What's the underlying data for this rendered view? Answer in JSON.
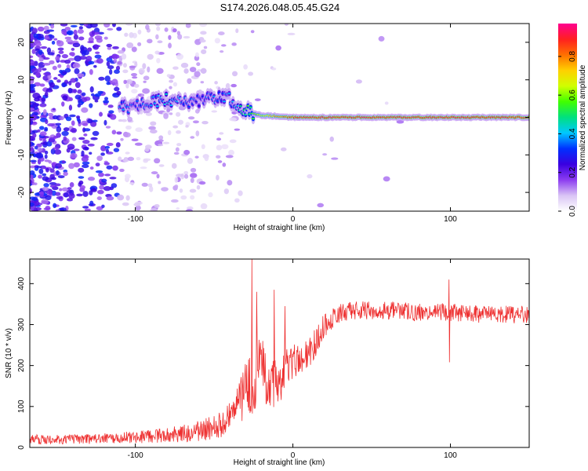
{
  "figure_title": "S174.2026.048.05.45.G24",
  "colorbar": {
    "label": "Normalized spectral amplitude",
    "ticks": [
      "0.0",
      "0.2",
      "0.4",
      "0.6",
      "0.8"
    ],
    "tick_values": [
      0.0,
      0.2,
      0.4,
      0.6,
      0.8
    ],
    "range": [
      0,
      0.97
    ],
    "colormap": [
      "#ffffff",
      "#d9c4f5",
      "#8c3cf0",
      "#3a00e0",
      "#0030ff",
      "#00c8ff",
      "#00e080",
      "#40ff00",
      "#d0ff00",
      "#ffd000",
      "#ff7000",
      "#ff2020",
      "#ff0090"
    ]
  },
  "chart_data": [
    {
      "type": "heatmap",
      "title": "S174.2026.048.05.45.G24",
      "xlabel": "Height of straight line (km)",
      "ylabel": "Frequency (Hz)",
      "xlim": [
        -167,
        150
      ],
      "ylim": [
        -25,
        25
      ],
      "xticks": [
        -100,
        0,
        100
      ],
      "yticks": [
        -20,
        -10,
        0,
        10,
        20
      ],
      "xtick_labels": [
        "-100",
        "0",
        "100"
      ],
      "ytick_labels": [
        "-20",
        "-10",
        "0",
        "10",
        "20"
      ],
      "ridge": {
        "x": [
          -110,
          -100,
          -90,
          -80,
          -70,
          -60,
          -50,
          -40,
          -35,
          -30,
          -25,
          -20,
          -10,
          0,
          20,
          50,
          100,
          150
        ],
        "frequency": [
          2.5,
          3,
          4,
          5,
          4,
          4.5,
          5.5,
          5,
          2.5,
          2,
          1,
          0.5,
          0.3,
          0,
          0,
          0,
          0,
          0
        ],
        "peak_amplitude": [
          0.35,
          0.3,
          0.35,
          0.4,
          0.35,
          0.3,
          0.35,
          0.35,
          0.4,
          0.5,
          0.55,
          0.65,
          0.75,
          0.85,
          0.9,
          0.88,
          0.9,
          0.88
        ]
      }
    },
    {
      "type": "line",
      "xlabel": "Height of straight line (km)",
      "ylabel": "SNR (10 * v/v)",
      "xlim": [
        -167,
        150
      ],
      "ylim": [
        0,
        460
      ],
      "xticks": [
        -100,
        0,
        100
      ],
      "yticks": [
        0,
        100,
        200,
        300,
        400
      ],
      "xtick_labels": [
        "-100",
        "0",
        "100"
      ],
      "ytick_labels": [
        "0",
        "100",
        "200",
        "300",
        "400"
      ],
      "series": [
        {
          "name": "SNR",
          "color": "#ee3030",
          "x": [
            -167,
            -140,
            -120,
            -100,
            -80,
            -60,
            -50,
            -40,
            -35,
            -30,
            -25,
            -20,
            -15,
            -10,
            -5,
            0,
            5,
            10,
            15,
            20,
            30,
            40,
            60,
            80,
            100,
            120,
            150
          ],
          "values": [
            20,
            20,
            22,
            25,
            30,
            40,
            50,
            70,
            100,
            140,
            170,
            190,
            170,
            150,
            190,
            210,
            220,
            225,
            260,
            300,
            330,
            335,
            335,
            330,
            330,
            325,
            325
          ],
          "noise": [
            12,
            12,
            13,
            15,
            18,
            25,
            30,
            40,
            55,
            80,
            95,
            90,
            70,
            60,
            50,
            45,
            40,
            40,
            35,
            30,
            25,
            22,
            22,
            22,
            22,
            22,
            22
          ]
        }
      ],
      "spikes": [
        {
          "x": -26,
          "value": 460
        },
        {
          "x": -23,
          "value": 380
        },
        {
          "x": -12,
          "value": 385
        },
        {
          "x": -5,
          "value": 345
        },
        {
          "x": 99,
          "value": 410
        },
        {
          "x": 99.5,
          "value": 208
        }
      ]
    }
  ]
}
